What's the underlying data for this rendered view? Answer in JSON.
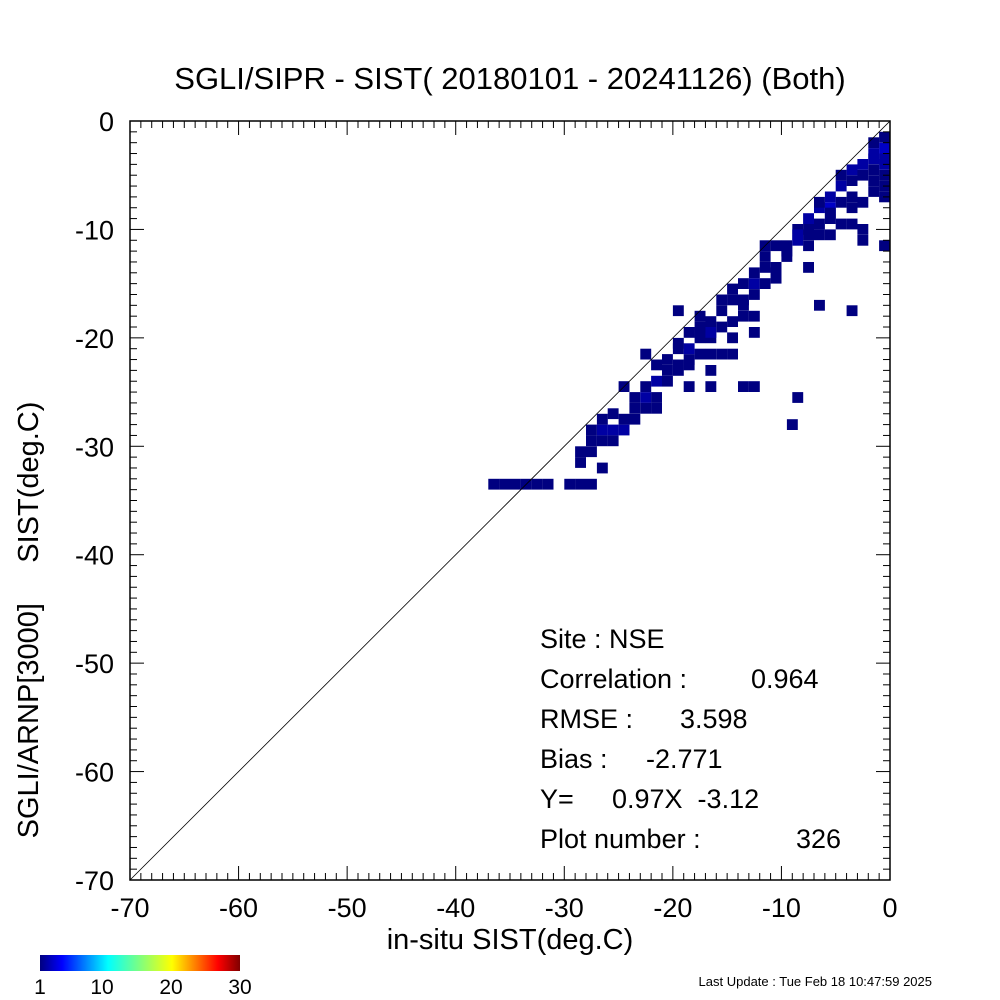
{
  "chart_data": {
    "type": "heatmap",
    "title": "SGLI/SIPR - SIST( 20180101 - 20241126) (Both)",
    "xlabel": "in-situ SIST(deg.C)",
    "ylabel": "SGLI/ARNP[3000]     SIST(deg.C)",
    "xlim": [
      -70,
      0
    ],
    "ylim": [
      -70,
      0
    ],
    "x_ticks": [
      "-70",
      "-60",
      "-50",
      "-40",
      "-30",
      "-20",
      "-10",
      "0"
    ],
    "y_ticks": [
      "-70",
      "-60",
      "-50",
      "-40",
      "-30",
      "-20",
      "-10",
      "0"
    ],
    "reference_line": "1:1",
    "colorbar": {
      "min": 1,
      "max": 30,
      "tick_labels": [
        "1",
        "10",
        "20",
        "30"
      ],
      "tick_values": [
        1,
        10,
        20,
        30
      ],
      "colormap": "jet"
    },
    "stats": {
      "site_label": "Site : ",
      "site": "NSE",
      "correlation_label": "Correlation :",
      "correlation": "0.964",
      "rmse_label": "RMSE :",
      "rmse": "3.598",
      "bias_label": "Bias :",
      "bias": "-2.771",
      "fit_label": "Y=",
      "fit": "0.97X  -3.12",
      "plot_number_label": "Plot number :",
      "plot_number": "326"
    },
    "cells": [
      [
        -36.5,
        -33.5,
        1
      ],
      [
        -35.5,
        -33.5,
        1
      ],
      [
        -34.5,
        -33.5,
        1
      ],
      [
        -33.5,
        -33.5,
        1
      ],
      [
        -32.5,
        -33.5,
        1
      ],
      [
        -31.5,
        -33.5,
        1
      ],
      [
        -29.5,
        -33.5,
        1
      ],
      [
        -28.5,
        -33.5,
        1
      ],
      [
        -27.5,
        -33.5,
        1
      ],
      [
        -28.5,
        -30.5,
        1
      ],
      [
        -28.5,
        -31.5,
        1
      ],
      [
        -27.5,
        -30.5,
        1
      ],
      [
        -27.5,
        -29.5,
        1
      ],
      [
        -26.5,
        -28.5,
        2
      ],
      [
        -26.5,
        -32.0,
        1
      ],
      [
        -26.5,
        -29.5,
        1
      ],
      [
        -25.5,
        -28.5,
        2
      ],
      [
        -25.5,
        -29.5,
        1
      ],
      [
        -24.5,
        -28.5,
        2
      ],
      [
        -24.5,
        -27.5,
        1
      ],
      [
        -23.5,
        -27.5,
        1
      ],
      [
        -24.5,
        -24.5,
        1
      ],
      [
        -23.5,
        -25.5,
        1
      ],
      [
        -23.5,
        -26.5,
        1
      ],
      [
        -22.5,
        -25.5,
        2
      ],
      [
        -22.5,
        -24.5,
        1
      ],
      [
        -22.5,
        -26.5,
        1
      ],
      [
        -21.5,
        -25.5,
        1
      ],
      [
        -21.5,
        -26.5,
        1
      ],
      [
        -22.5,
        -21.5,
        1
      ],
      [
        -21.5,
        -24.0,
        2
      ],
      [
        -20.5,
        -24.0,
        1
      ],
      [
        -20.5,
        -23.0,
        1
      ],
      [
        -19.5,
        -23.0,
        1
      ],
      [
        -19.5,
        -22.5,
        1
      ],
      [
        -18.5,
        -22.0,
        1
      ],
      [
        -18.5,
        -24.5,
        1
      ],
      [
        -19.5,
        -21.0,
        1
      ],
      [
        -18.5,
        -21.0,
        2
      ],
      [
        -18.5,
        -22.5,
        1
      ],
      [
        -17.5,
        -21.5,
        1
      ],
      [
        -17.5,
        -20.0,
        1
      ],
      [
        -16.5,
        -21.5,
        1
      ],
      [
        -15.5,
        -21.5,
        1
      ],
      [
        -14.5,
        -21.5,
        1
      ],
      [
        -16.5,
        -20.0,
        1
      ],
      [
        -17.5,
        -19.5,
        1
      ],
      [
        -17.5,
        -18.0,
        1
      ],
      [
        -16.5,
        -19.5,
        2
      ],
      [
        -16.5,
        -18.5,
        1
      ],
      [
        -15.5,
        -19.0,
        1
      ],
      [
        -15.5,
        -17.5,
        1
      ],
      [
        -14.5,
        -18.5,
        1
      ],
      [
        -15.5,
        -16.5,
        1
      ],
      [
        -14.5,
        -16.5,
        1
      ],
      [
        -14.5,
        -15.5,
        1
      ],
      [
        -13.5,
        -16.5,
        1
      ],
      [
        -13.5,
        -15.0,
        1
      ],
      [
        -12.5,
        -15.0,
        2
      ],
      [
        -12.5,
        -14.0,
        1
      ],
      [
        -11.5,
        -13.5,
        1
      ],
      [
        -11.5,
        -12.5,
        1
      ],
      [
        -10.5,
        -13.5,
        1
      ],
      [
        -10.5,
        -11.5,
        1
      ],
      [
        -13.5,
        -17.0,
        1
      ],
      [
        -12.5,
        -16.0,
        1
      ],
      [
        -13.5,
        -18.0,
        1
      ],
      [
        -12.5,
        -18.0,
        1
      ],
      [
        -12.5,
        -19.5,
        1
      ],
      [
        -13.5,
        -24.5,
        1
      ],
      [
        -12.5,
        -24.5,
        1
      ],
      [
        -16.5,
        -24.5,
        1
      ],
      [
        -11.5,
        -15.0,
        1
      ],
      [
        -10.5,
        -14.5,
        1
      ],
      [
        -9.5,
        -11.5,
        1
      ],
      [
        -9.5,
        -12.5,
        1
      ],
      [
        -8.5,
        -11.0,
        2
      ],
      [
        -8.5,
        -10.0,
        1
      ],
      [
        -7.5,
        -10.5,
        1
      ],
      [
        -7.5,
        -9.0,
        2
      ],
      [
        -6.5,
        -8.0,
        2
      ],
      [
        -6.5,
        -9.5,
        1
      ],
      [
        -5.5,
        -8.0,
        3
      ],
      [
        -5.5,
        -7.0,
        2
      ],
      [
        -4.5,
        -7.5,
        1
      ],
      [
        -4.5,
        -6.0,
        2
      ],
      [
        -4.5,
        -5.0,
        1
      ],
      [
        -3.5,
        -5.5,
        1
      ],
      [
        -3.5,
        -4.5,
        2
      ],
      [
        -2.5,
        -5.0,
        1
      ],
      [
        -2.5,
        -4.0,
        2
      ],
      [
        -1.5,
        -3.5,
        2
      ],
      [
        -1.5,
        -4.5,
        1
      ],
      [
        -0.5,
        -2.5,
        3
      ],
      [
        -0.5,
        -3.5,
        2
      ],
      [
        -0.5,
        -1.5,
        1
      ],
      [
        -1.5,
        -2.0,
        1
      ],
      [
        -0.5,
        -5.0,
        1
      ],
      [
        -0.5,
        -6.0,
        1
      ],
      [
        -0.5,
        -7.0,
        1
      ],
      [
        -1.5,
        -6.5,
        1
      ],
      [
        -2.5,
        -7.5,
        1
      ],
      [
        -3.5,
        -8.0,
        1
      ],
      [
        -4.5,
        -9.5,
        1
      ],
      [
        -2.5,
        -10.0,
        1
      ],
      [
        -3.5,
        -9.5,
        1
      ],
      [
        -5.5,
        -8.5,
        1
      ],
      [
        -6.5,
        -10.5,
        1
      ],
      [
        -9.5,
        -12.0,
        1
      ],
      [
        -10.5,
        -14.0,
        1
      ],
      [
        -11.5,
        -11.5,
        1
      ],
      [
        -7.5,
        -13.5,
        1
      ],
      [
        -7.5,
        -11.5,
        1
      ],
      [
        -5.5,
        -10.5,
        1
      ],
      [
        -2.5,
        -11.0,
        1
      ],
      [
        -0.5,
        -11.5,
        1
      ],
      [
        -6.5,
        -17.0,
        1
      ],
      [
        -3.5,
        -17.5,
        1
      ],
      [
        -8.5,
        -25.5,
        1
      ],
      [
        -9.0,
        -28.0,
        1
      ],
      [
        -17.5,
        -19.0,
        1
      ],
      [
        -18.5,
        -19.5,
        1
      ],
      [
        -19.5,
        -20.5,
        1
      ],
      [
        -21.5,
        -22.5,
        1
      ],
      [
        -20.5,
        -22.0,
        1
      ],
      [
        -19.5,
        -17.5,
        1
      ],
      [
        -16.5,
        -23.0,
        1
      ],
      [
        -14.5,
        -20.0,
        1
      ],
      [
        -27.5,
        -28.5,
        1
      ],
      [
        -26.5,
        -27.5,
        1
      ],
      [
        -25.5,
        -27.0,
        1
      ],
      [
        -8.5,
        -10.5,
        2
      ],
      [
        -7.5,
        -10.0,
        1
      ],
      [
        -6.5,
        -7.5,
        1
      ],
      [
        -5.5,
        -9.0,
        1
      ],
      [
        -3.5,
        -7.0,
        1
      ],
      [
        -1.5,
        -3.0,
        2
      ],
      [
        -0.5,
        -4.0,
        2
      ],
      [
        -1.5,
        -5.5,
        1
      ]
    ]
  },
  "footer": {
    "last_update": "Last Update : Tue Feb 18 10:47:59 2025"
  }
}
